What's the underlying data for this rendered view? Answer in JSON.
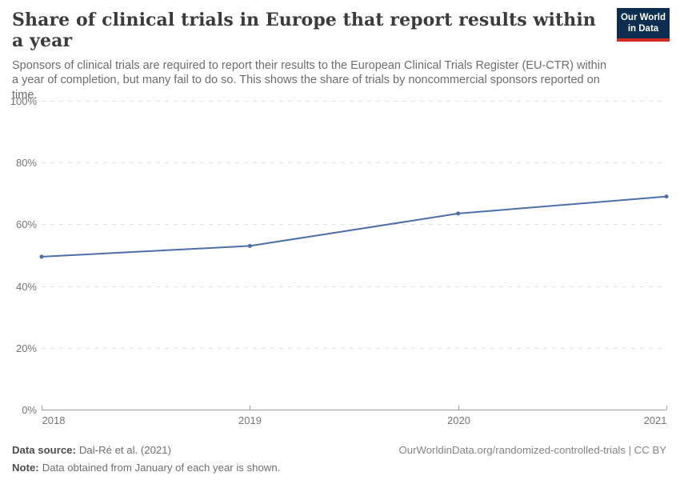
{
  "header": {
    "title": "Share of clinical trials in Europe that report results within a year",
    "subtitle": "Sponsors of clinical trials are required to report their results to the European Clinical Trials Register (EU-CTR) within a year of completion, but many fail to do so. This shows the share of trials by noncommercial sponsors reported on time."
  },
  "logo": {
    "line1": "Our World",
    "line2": "in Data",
    "bg_color": "#0d2e4e",
    "bar_color": "#d42b21"
  },
  "chart_data": {
    "type": "line",
    "title": "Share of clinical trials in Europe that report results within a year",
    "x": [
      "2018",
      "2019",
      "2020",
      "2021"
    ],
    "values": [
      49.5,
      53,
      63.5,
      69
    ],
    "ylim": [
      0,
      100
    ],
    "yticks": [
      0,
      20,
      40,
      60,
      80,
      100
    ],
    "ytick_suffix": "%",
    "grid": "horizontal-dashed",
    "legend": "none",
    "line_color": "#4c6ea9",
    "marker": "circle",
    "axis_color": "#9c9c9c",
    "grid_color": "#e2e2e2",
    "tick_label_color": "#757575"
  },
  "footer": {
    "source_label": "Data source:",
    "source_text": "Dal-Ré et al. (2021)",
    "note_label": "Note:",
    "note_text": "Data obtained from January of each year is shown.",
    "right_text": "OurWorldinData.org/randomized-controlled-trials | CC BY"
  }
}
